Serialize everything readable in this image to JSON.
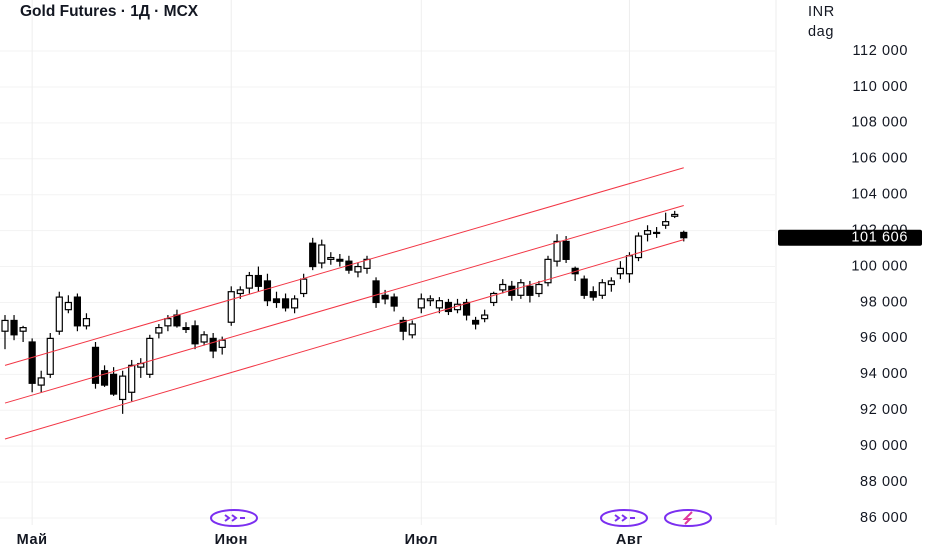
{
  "chart_data": {
    "type": "candlestick",
    "title": "Gold Futures · 1Д · MCX",
    "currency": "INR",
    "unit": "dag",
    "categories": [
      null,
      null,
      null,
      "Май",
      null,
      null,
      null,
      null,
      null,
      null,
      null,
      null,
      null,
      null,
      null,
      null,
      null,
      null,
      null,
      null,
      null,
      null,
      null,
      null,
      null,
      "Июн",
      null,
      null,
      null,
      null,
      null,
      null,
      null,
      null,
      null,
      null,
      null,
      null,
      null,
      null,
      null,
      null,
      null,
      null,
      null,
      null,
      "Июл",
      null,
      null,
      null,
      null,
      null,
      null,
      null,
      null,
      null,
      null,
      null,
      null,
      null,
      null,
      null,
      null,
      null,
      null,
      null,
      null,
      null,
      null,
      "Авг",
      null,
      null,
      null,
      null,
      null,
      null
    ],
    "open": [
      96400,
      97000,
      96400,
      95800,
      93400,
      94000,
      96400,
      97600,
      98300,
      96700,
      95500,
      94200,
      94000,
      92600,
      93000,
      94400,
      94000,
      96300,
      96700,
      97300,
      96600,
      96700,
      95800,
      96000,
      95500,
      96900,
      98500,
      98800,
      99500,
      99200,
      98200,
      98200,
      97700,
      98500,
      101300,
      100200,
      100400,
      100400,
      100300,
      99700,
      99900,
      99200,
      98400,
      98300,
      97000,
      96200,
      97700,
      98100,
      97700,
      98000,
      97600,
      98000,
      97000,
      97100,
      98000,
      98700,
      98900,
      98400,
      98900,
      98500,
      99100,
      100300,
      101400,
      99900,
      99300,
      98600,
      98400,
      99000,
      99600,
      99600,
      100500,
      101800,
      101900,
      102300,
      102800,
      101900
    ],
    "high": [
      97300,
      97300,
      96700,
      96000,
      94200,
      96300,
      98600,
      98400,
      98500,
      97400,
      95800,
      94500,
      94400,
      94200,
      94800,
      94900,
      96200,
      96800,
      97300,
      97600,
      96900,
      97000,
      96400,
      96300,
      96100,
      98900,
      98900,
      99700,
      100000,
      99600,
      98600,
      98500,
      98400,
      99600,
      101600,
      101500,
      100800,
      100700,
      100600,
      100200,
      100600,
      99400,
      98700,
      98500,
      97200,
      97000,
      98500,
      98400,
      98300,
      98200,
      98200,
      98200,
      97200,
      97600,
      98600,
      99300,
      99200,
      99300,
      99200,
      99200,
      100600,
      101800,
      101700,
      100000,
      99500,
      98900,
      99300,
      99400,
      100300,
      100800,
      101900,
      102300,
      102200,
      103000,
      103100,
      102000
    ],
    "low": [
      95400,
      95900,
      95800,
      93000,
      93000,
      93800,
      96200,
      97400,
      96400,
      96500,
      93200,
      93300,
      92800,
      91800,
      92500,
      93800,
      93800,
      96000,
      96400,
      96600,
      96300,
      95400,
      95600,
      94900,
      95100,
      96700,
      98200,
      98500,
      98600,
      97800,
      97700,
      97500,
      97400,
      98300,
      99800,
      99900,
      100100,
      100000,
      99600,
      99400,
      99600,
      97700,
      97900,
      97500,
      95900,
      96000,
      97400,
      97800,
      97400,
      97300,
      97400,
      97000,
      96500,
      96900,
      97800,
      98500,
      98100,
      98200,
      98000,
      98300,
      98900,
      100000,
      100200,
      99200,
      98200,
      98100,
      98200,
      98600,
      99300,
      99100,
      100300,
      101400,
      101600,
      102100,
      102700,
      101400
    ],
    "close": [
      97000,
      96200,
      96600,
      93500,
      93800,
      96000,
      98300,
      98000,
      96700,
      97100,
      93500,
      93400,
      92900,
      93900,
      94500,
      94600,
      96000,
      96600,
      97100,
      96700,
      96500,
      95700,
      96200,
      95300,
      95900,
      98600,
      98700,
      99500,
      98900,
      98100,
      98000,
      97700,
      98200,
      99300,
      100000,
      101200,
      100500,
      100300,
      99800,
      100000,
      100400,
      98000,
      98200,
      97800,
      96400,
      96800,
      98200,
      98200,
      98100,
      97500,
      97900,
      97300,
      96800,
      97300,
      98500,
      99000,
      98400,
      99100,
      98400,
      99000,
      100400,
      101400,
      100400,
      99600,
      98400,
      98300,
      99100,
      99200,
      99900,
      100600,
      101700,
      102000,
      101900,
      102500,
      102900,
      101606
    ],
    "up_color": "#ffffff",
    "down_color": "#000000",
    "border_color": "#000000",
    "ylim": [
      85610,
      114842
    ],
    "yticks": [
      {
        "value": 86000,
        "label": "86 000"
      },
      {
        "value": 88000,
        "label": "88 000"
      },
      {
        "value": 90000,
        "label": "90 000"
      },
      {
        "value": 92000,
        "label": "92 000"
      },
      {
        "value": 94000,
        "label": "94 000"
      },
      {
        "value": 96000,
        "label": "96 000"
      },
      {
        "value": 98000,
        "label": "98 000"
      },
      {
        "value": 100000,
        "label": "100 000"
      },
      {
        "value": 102000,
        "label": "102 000"
      },
      {
        "value": 104000,
        "label": "104 000"
      },
      {
        "value": 106000,
        "label": "106 000"
      },
      {
        "value": 108000,
        "label": "108 000"
      },
      {
        "value": 110000,
        "label": "110 000"
      },
      {
        "value": 112000,
        "label": "112 000"
      }
    ],
    "last_price": {
      "value": 101606,
      "label": "101 606"
    },
    "grid": true,
    "channel_color": "#f23645",
    "channel": [
      {
        "start": [
          0,
          94500
        ],
        "end": [
          75,
          105500
        ]
      },
      {
        "start": [
          0,
          92400
        ],
        "end": [
          75,
          103400
        ]
      },
      {
        "start": [
          0,
          90400
        ],
        "end": [
          75,
          101500
        ]
      }
    ]
  }
}
